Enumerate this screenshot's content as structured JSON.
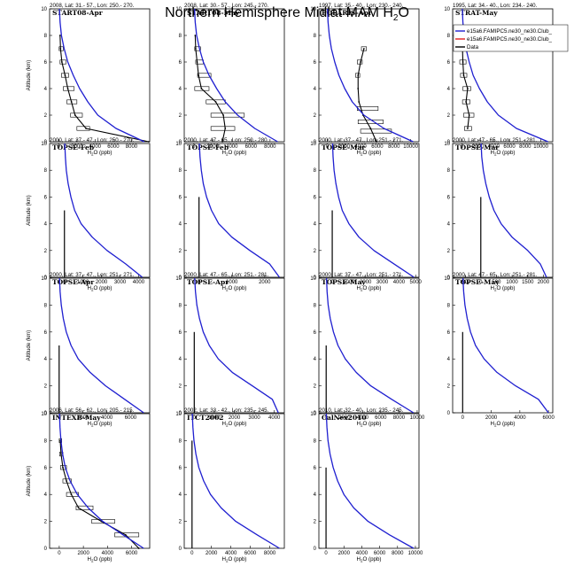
{
  "title": {
    "main": "Northern Hemisphere Midlat MAM H",
    "sub": "2",
    "tail": "O"
  },
  "colors": {
    "model": "#1f1fd0",
    "model2": "#e02020",
    "data": "#000000"
  },
  "legend": [
    {
      "label": "e15a6.FAMIPC5.ne30_ne30.Club_",
      "color": "#1f1fd0"
    },
    {
      "label": "e15a6.FAMIPC5.ne30_ne30.Club_",
      "color": "#e02020"
    },
    {
      "label": "Data",
      "color": "#000000"
    }
  ],
  "chart_data": [
    {
      "type": "line",
      "header": "2008, Lat: 31.- 57., Lon: 250.- 270.",
      "campaign": "START08-Apr",
      "xlabel": "H2O (ppb)",
      "ylabel": "Altitude (km)",
      "xlim": [
        -1000,
        10000
      ],
      "ylim": [
        0,
        10
      ],
      "xticks": [
        0,
        2000,
        4000,
        6000,
        8000
      ],
      "yticks": [
        0,
        2,
        4,
        6,
        8,
        10
      ],
      "model": {
        "x": [
          9400,
          6300,
          4300,
          3200,
          2300,
          1600,
          1000,
          600,
          300,
          150,
          80
        ],
        "y": [
          0,
          1,
          2,
          3,
          4,
          5,
          6,
          7,
          8,
          9,
          10
        ]
      },
      "data": {
        "x": [
          9900,
          3000,
          1800,
          1400,
          1000,
          700,
          350,
          200,
          150
        ],
        "y": [
          0,
          1,
          2,
          3,
          4,
          5,
          6,
          7,
          8
        ]
      },
      "boxes": [
        {
          "y": 1,
          "lo": 2000,
          "hi": 3400
        },
        {
          "y": 2,
          "lo": 1300,
          "hi": 2600
        },
        {
          "y": 3,
          "lo": 900,
          "hi": 2000
        },
        {
          "y": 4,
          "lo": 500,
          "hi": 1700
        },
        {
          "y": 5,
          "lo": 300,
          "hi": 1100
        },
        {
          "y": 6,
          "lo": 150,
          "hi": 800
        },
        {
          "y": 7,
          "lo": 50,
          "hi": 500
        }
      ]
    },
    {
      "type": "line",
      "header": "2008, Lat: 30.- 57., Lon: 245.- 270.",
      "campaign": "START08-May",
      "xlabel": "H2O (ppb)",
      "ylabel": "",
      "xlim": [
        -1000,
        9500
      ],
      "ylim": [
        0,
        10
      ],
      "xticks": [
        0,
        2000,
        4000,
        6000,
        8000
      ],
      "yticks": [
        0,
        2,
        4,
        6,
        8,
        10
      ],
      "model": {
        "x": [
          8800,
          6400,
          4600,
          3300,
          2400,
          1600,
          1000,
          600,
          300,
          150,
          80
        ],
        "y": [
          0,
          1,
          2,
          3,
          4,
          5,
          6,
          7,
          8,
          9,
          10
        ]
      },
      "data": {
        "x": [
          3000,
          3300,
          3100,
          2300,
          800,
          500,
          350,
          200,
          150
        ],
        "y": [
          0,
          1,
          2,
          3,
          4,
          5,
          6,
          7,
          8
        ]
      },
      "boxes": [
        {
          "y": 1,
          "lo": 1800,
          "hi": 4300
        },
        {
          "y": 2,
          "lo": 1800,
          "hi": 5300
        },
        {
          "y": 3,
          "lo": 1300,
          "hi": 3300
        },
        {
          "y": 4,
          "lo": 100,
          "hi": 1600
        },
        {
          "y": 5,
          "lo": 400,
          "hi": 1800
        },
        {
          "y": 6,
          "lo": 200,
          "hi": 1000
        },
        {
          "y": 7,
          "lo": 100,
          "hi": 700
        }
      ]
    },
    {
      "type": "line",
      "header": "1997, Lat: 35.- 40., Lon: 230.- 240.",
      "campaign": "POLARIS-Apr",
      "xlabel": "H2O (ppb)",
      "ylabel": "",
      "xlim": [
        -1000,
        11000
      ],
      "ylim": [
        0,
        10
      ],
      "xticks": [
        0,
        2000,
        4000,
        6000,
        8000,
        10000
      ],
      "yticks": [
        0,
        2,
        4,
        6,
        8,
        10
      ],
      "model": {
        "x": [
          10300,
          6800,
          4400,
          3000,
          2100,
          1400,
          900,
          500,
          250,
          100,
          30
        ],
        "y": [
          0,
          1,
          2,
          3,
          4,
          5,
          6,
          7,
          8,
          9,
          10
        ]
      },
      "data": {
        "x": [
          5900,
          5200,
          4300,
          3800,
          3700,
          3700,
          4000,
          4400
        ],
        "y": [
          0,
          1,
          2,
          3,
          4,
          5,
          6,
          7
        ]
      },
      "boxes": [
        {
          "y": 0.8,
          "lo": 4000,
          "hi": 7700
        },
        {
          "y": 1.5,
          "lo": 3700,
          "hi": 6700
        },
        {
          "y": 2.5,
          "lo": 3600,
          "hi": 6100
        },
        {
          "y": 5,
          "lo": 3400,
          "hi": 3900
        },
        {
          "y": 6,
          "lo": 3600,
          "hi": 4200
        },
        {
          "y": 7,
          "lo": 4100,
          "hi": 4700
        }
      ]
    },
    {
      "type": "line",
      "header": "1995, Lat: 34.- 40., Lon: 234.- 240.",
      "campaign": "STRAT-May",
      "xlabel": "H2O (ppb)",
      "ylabel": "",
      "xlim": [
        -1200,
        11500
      ],
      "ylim": [
        0,
        10
      ],
      "xticks": [
        0,
        2000,
        4000,
        6000,
        8000,
        10000
      ],
      "yticks": [
        0,
        2,
        4,
        6,
        8,
        10
      ],
      "model": {
        "x": [
          10900,
          6900,
          4600,
          3200,
          2200,
          1400,
          900,
          500,
          250,
          100,
          30
        ],
        "y": [
          0,
          1,
          2,
          3,
          4,
          5,
          6,
          7,
          8,
          9,
          10
        ]
      },
      "data": {
        "x": [
          700,
          900,
          500,
          700,
          200,
          100,
          50
        ],
        "y": [
          1,
          2,
          3,
          4,
          5,
          6,
          7
        ]
      },
      "boxes": [
        {
          "y": 1,
          "lo": 300,
          "hi": 1200
        },
        {
          "y": 2,
          "lo": 200,
          "hi": 1500
        },
        {
          "y": 3,
          "lo": 50,
          "hi": 1000
        },
        {
          "y": 4,
          "lo": 100,
          "hi": 1100
        },
        {
          "y": 5,
          "lo": -200,
          "hi": 600
        },
        {
          "y": 6,
          "lo": -300,
          "hi": 500
        },
        {
          "y": 7,
          "lo": -200,
          "hi": 400
        }
      ]
    },
    {
      "type": "line",
      "header": "2000, Lat: 37.- 47., Lon: 250.- 270.",
      "campaign": "TOPSE-Feb",
      "xlabel": "H2O (ppb)",
      "ylabel": "Altitude (km)",
      "xlim": [
        -800,
        4600
      ],
      "ylim": [
        0,
        10
      ],
      "xticks": [
        0,
        1000,
        2000,
        3000,
        4000
      ],
      "yticks": [
        0,
        2,
        4,
        6,
        8,
        10
      ],
      "model": {
        "x": [
          4200,
          3300,
          2300,
          1500,
          900,
          550,
          350,
          200,
          100,
          50,
          20
        ],
        "y": [
          0,
          1,
          2,
          3,
          4,
          5,
          6,
          7,
          8,
          9,
          10
        ]
      },
      "stem": {
        "x": 0,
        "top": 5
      },
      "boxes": []
    },
    {
      "type": "line",
      "header": "2000, Lat: 47.- 65., Lon: 250.- 280.",
      "campaign": "TOPSE-Feb",
      "xlabel": "H2O (ppb)",
      "ylabel": "",
      "xlim": [
        -450,
        2600
      ],
      "ylim": [
        0,
        10
      ],
      "xticks": [
        0,
        1000,
        2000
      ],
      "yticks": [
        0,
        2,
        4,
        6,
        8,
        10
      ],
      "model": {
        "x": [
          2450,
          2150,
          1550,
          1000,
          600,
          380,
          230,
          130,
          70,
          30,
          10
        ],
        "y": [
          0,
          1,
          2,
          3,
          4,
          5,
          6,
          7,
          8,
          9,
          10
        ]
      },
      "stem": {
        "x": 0,
        "top": 6
      },
      "boxes": []
    },
    {
      "type": "line",
      "header": "2000, Lat: 37.- 47., Lon: 251.- 271.",
      "campaign": "TOPSE-Mar",
      "xlabel": "H2O (ppb)",
      "ylabel": "",
      "xlim": [
        -800,
        5200
      ],
      "ylim": [
        0,
        10
      ],
      "xticks": [
        0,
        1000,
        2000,
        3000,
        4000,
        5000
      ],
      "yticks": [
        0,
        2,
        4,
        6,
        8,
        10
      ],
      "model": {
        "x": [
          4900,
          3700,
          2500,
          1600,
          1000,
          600,
          380,
          220,
          110,
          50,
          20
        ],
        "y": [
          0,
          1,
          2,
          3,
          4,
          5,
          6,
          7,
          8,
          9,
          10
        ]
      },
      "stem": {
        "x": 0,
        "top": 5
      },
      "boxes": []
    },
    {
      "type": "line",
      "header": "2000, Lat: 47.- 65., Lon: 251.- 281.",
      "campaign": "TOPSE-Mar",
      "xlabel": "H2O (ppb)",
      "ylabel": "",
      "xlim": [
        -900,
        2300
      ],
      "ylim": [
        0,
        10
      ],
      "xticks": [
        -500,
        0,
        500,
        1000,
        1500,
        2000
      ],
      "yticks": [
        0,
        2,
        4,
        6,
        8,
        10
      ],
      "model": {
        "x": [
          2100,
          1900,
          1500,
          1000,
          650,
          420,
          270,
          160,
          80,
          30,
          10
        ],
        "y": [
          0,
          1,
          2,
          3,
          4,
          5,
          6,
          7,
          8,
          9,
          10
        ]
      },
      "stem": {
        "x": 0,
        "top": 6
      },
      "boxes": []
    },
    {
      "type": "line",
      "header": "2000, Lat: 37.- 47., Lon: 251.- 271.",
      "campaign": "TOPSE-Apr",
      "xlabel": "H2O (ppb)",
      "ylabel": "Altitude (km)",
      "xlim": [
        -800,
        7600
      ],
      "ylim": [
        0,
        10
      ],
      "xticks": [
        0,
        2000,
        4000,
        6000
      ],
      "yticks": [
        0,
        2,
        4,
        6,
        8,
        10
      ],
      "model": {
        "x": [
          7100,
          5500,
          3900,
          2600,
          1600,
          1000,
          600,
          350,
          180,
          80,
          30
        ],
        "y": [
          0,
          1,
          2,
          3,
          4,
          5,
          6,
          7,
          8,
          9,
          10
        ]
      },
      "stem": {
        "x": 0,
        "top": 5
      },
      "boxes": []
    },
    {
      "type": "line",
      "header": "2000, Lat: 47.- 65., Lon: 251.- 281.",
      "campaign": "TOPSE-Apr",
      "xlabel": "H2O (ppb)",
      "ylabel": "",
      "xlim": [
        -500,
        4500
      ],
      "ylim": [
        0,
        10
      ],
      "xticks": [
        0,
        1000,
        2000,
        3000,
        4000
      ],
      "yticks": [
        0,
        2,
        4,
        6,
        8,
        10
      ],
      "model": {
        "x": [
          4200,
          3900,
          2900,
          1900,
          1200,
          750,
          450,
          260,
          130,
          60,
          20
        ],
        "y": [
          0,
          1,
          2,
          3,
          4,
          5,
          6,
          7,
          8,
          9,
          10
        ]
      },
      "stem": {
        "x": 0,
        "top": 6
      },
      "boxes": []
    },
    {
      "type": "line",
      "header": "2000, Lat: 37.- 47., Lon: 251.- 271.",
      "campaign": "TOPSE-May",
      "xlabel": "H2O (ppb)",
      "ylabel": "",
      "xlim": [
        -800,
        10200
      ],
      "ylim": [
        0,
        10
      ],
      "xticks": [
        0,
        2000,
        4000,
        6000,
        8000,
        10000
      ],
      "yticks": [
        0,
        2,
        4,
        6,
        8,
        10
      ],
      "model": {
        "x": [
          9600,
          7200,
          4900,
          3300,
          2100,
          1300,
          800,
          450,
          220,
          100,
          40
        ],
        "y": [
          0,
          1,
          2,
          3,
          4,
          5,
          6,
          7,
          8,
          9,
          10
        ]
      },
      "stem": {
        "x": 0,
        "top": 5
      },
      "boxes": []
    },
    {
      "type": "line",
      "header": "2000, Lat: 47.- 65., Lon: 251.- 281.",
      "campaign": "TOPSE-May",
      "xlabel": "H2O (ppb)",
      "ylabel": "",
      "xlim": [
        -700,
        6300
      ],
      "ylim": [
        0,
        10
      ],
      "xticks": [
        0,
        2000,
        4000,
        6000
      ],
      "yticks": [
        0,
        2,
        4,
        6,
        8,
        10
      ],
      "model": {
        "x": [
          6000,
          5300,
          3700,
          2400,
          1500,
          900,
          550,
          320,
          160,
          70,
          20
        ],
        "y": [
          0,
          1,
          2,
          3,
          4,
          5,
          6,
          7,
          8,
          9,
          10
        ]
      },
      "stem": {
        "x": 0,
        "top": 6
      },
      "boxes": []
    },
    {
      "type": "line",
      "header": "2006, Lat: 56.- 62., Lon: 205.- 215.",
      "campaign": "INTEXB-May",
      "xlabel": "H2O (ppb)",
      "ylabel": "Altitude (km)",
      "xlim": [
        -800,
        7500
      ],
      "ylim": [
        0,
        10
      ],
      "xticks": [
        0,
        2000,
        4000,
        6000
      ],
      "yticks": [
        0,
        2,
        4,
        6,
        8,
        10
      ],
      "model": {
        "x": [
          7000,
          5300,
          3600,
          2400,
          1500,
          900,
          500,
          280,
          140,
          60,
          20
        ],
        "y": [
          0,
          1,
          2,
          3,
          4,
          5,
          6,
          7,
          8,
          9,
          10
        ]
      },
      "data": {
        "x": [
          6600,
          5500,
          3500,
          1600,
          1000,
          600,
          300,
          150,
          80
        ],
        "y": [
          0,
          1,
          2,
          3,
          4,
          5,
          6,
          7,
          8
        ]
      },
      "boxes": [
        {
          "y": 1,
          "lo": 4600,
          "hi": 6600
        },
        {
          "y": 2,
          "lo": 2700,
          "hi": 4600
        },
        {
          "y": 3,
          "lo": 1400,
          "hi": 2800
        },
        {
          "y": 4,
          "lo": 600,
          "hi": 1600
        },
        {
          "y": 5,
          "lo": 300,
          "hi": 1000
        },
        {
          "y": 6,
          "lo": 100,
          "hi": 600
        },
        {
          "y": 7,
          "lo": 30,
          "hi": 300
        },
        {
          "y": 8,
          "lo": 0,
          "hi": 200
        }
      ]
    },
    {
      "type": "line",
      "header": "2002, Lat: 33.- 42., Lon: 235.- 245.",
      "campaign": "ITCT2002",
      "xlabel": "H2O (ppb)",
      "ylabel": "",
      "xlim": [
        -800,
        9500
      ],
      "ylim": [
        0,
        10
      ],
      "xticks": [
        0,
        2000,
        4000,
        6000,
        8000
      ],
      "yticks": [
        0,
        2,
        4,
        6,
        8,
        10
      ],
      "model": {
        "x": [
          9000,
          6700,
          4500,
          3000,
          1900,
          1200,
          700,
          400,
          200,
          90,
          30
        ],
        "y": [
          0,
          1,
          2,
          3,
          4,
          5,
          6,
          7,
          8,
          9,
          10
        ]
      },
      "stem": {
        "x": 0,
        "top": 8
      },
      "boxes": []
    },
    {
      "type": "line",
      "header": "2010, Lat: 32.- 40., Lon: 235.- 245.",
      "campaign": "CalNex2010",
      "xlabel": "H2O (ppb)",
      "ylabel": "",
      "xlim": [
        -800,
        10400
      ],
      "ylim": [
        0,
        10
      ],
      "xticks": [
        0,
        2000,
        4000,
        6000,
        8000,
        10000
      ],
      "yticks": [
        0,
        2,
        4,
        6,
        8,
        10
      ],
      "model": {
        "x": [
          9800,
          7100,
          4700,
          3100,
          2000,
          1300,
          800,
          450,
          220,
          100,
          30
        ],
        "y": [
          0,
          1,
          2,
          3,
          4,
          5,
          6,
          7,
          8,
          9,
          10
        ]
      },
      "stem": {
        "x": 0,
        "top": 6
      },
      "boxes": []
    }
  ]
}
